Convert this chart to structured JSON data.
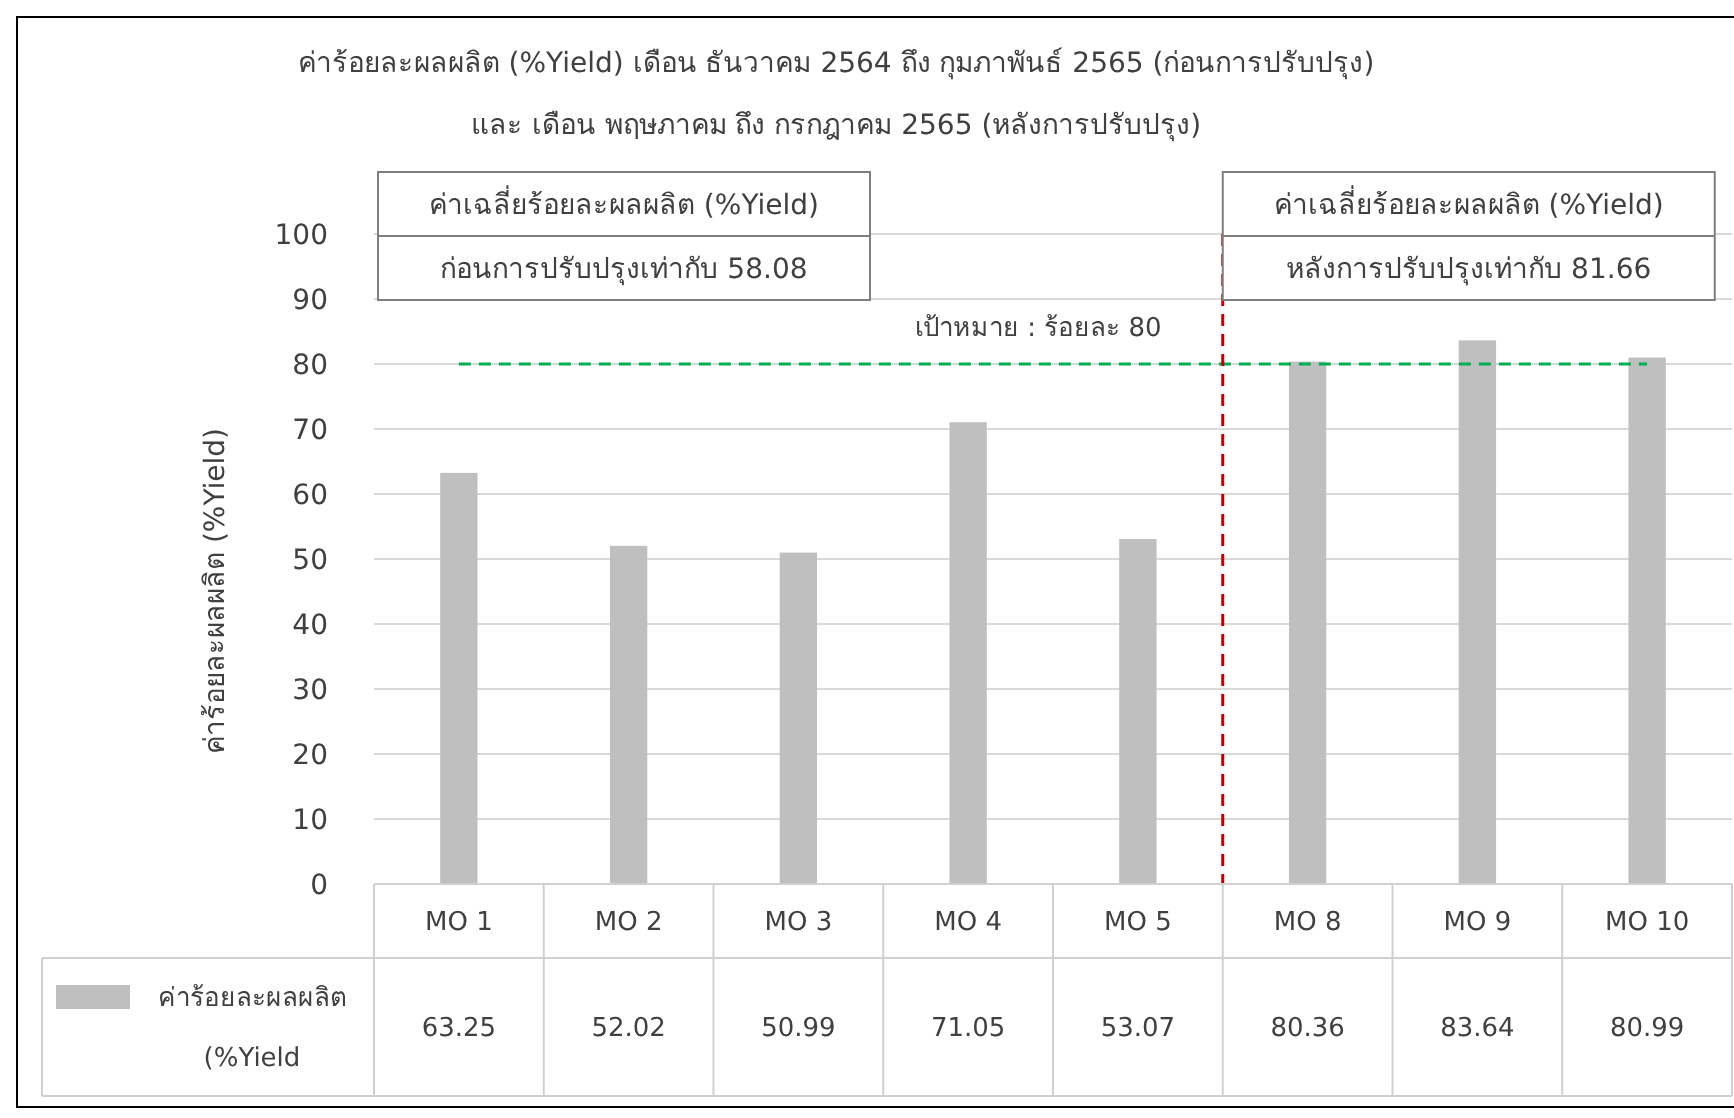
{
  "chart_data": {
    "type": "bar",
    "title": "ค่าร้อยละผลผลิต (%Yield) เดือน ธันวาคม 2564 ถึง กุมภาพันธ์ 2565 (ก่อนการปรับปรุง)\nและ เดือน พฤษภาคม ถึง กรกฎาคม 2565 (หลังการปรับปรุง)",
    "ylabel": "ค่าร้อยละผลผลิต (%Yield)",
    "categories": [
      "MO 1",
      "MO 2",
      "MO 3",
      "MO 4",
      "MO 5",
      "MO 8",
      "MO 9",
      "MO 10"
    ],
    "series": [
      {
        "name": "ค่าร้อยละผลผลิต (%Yield",
        "color": "#bfbfbf",
        "values": [
          63.25,
          52.02,
          50.99,
          71.05,
          53.07,
          80.36,
          83.64,
          80.99
        ]
      }
    ],
    "ylim": [
      0,
      100
    ],
    "yticks": [
      0,
      10,
      20,
      30,
      40,
      50,
      60,
      70,
      80,
      90,
      100
    ],
    "grid": "y",
    "legend": "bottom left",
    "data_labels": true,
    "ref_lines": [
      {
        "axis": "y",
        "value": 80,
        "label": "เป้าหมาย : ร้อยละ 80",
        "color": "#00b050",
        "line_style": "dashed"
      },
      {
        "axis": "x",
        "value": "MO 8",
        "color": "#c00000",
        "line_style": "dashed"
      }
    ],
    "annotations": [
      "ค่าเฉลี่ยร้อยละผลผลิต (%Yield)\nก่อนการปรับปรุงเท่ากับ 58.08",
      "ค่าเฉลี่ยร้อยละผลผลิต (%Yield)\nหลังการปรับปรุงเท่ากับ 81.66"
    ]
  }
}
